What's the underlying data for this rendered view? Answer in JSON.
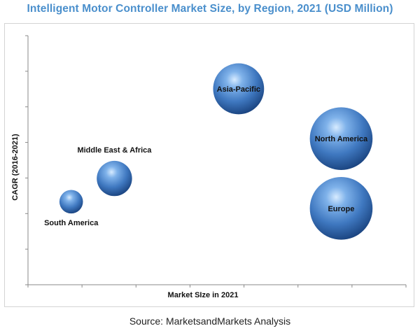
{
  "chart_data": {
    "type": "scatter",
    "title": "Intelligent Motor Controller Market Size, by Region, 2021 (USD Million)",
    "xlabel": "Market SIze in 2021",
    "ylabel": "CAGR (2016-2021)",
    "x_ticks": 7,
    "y_ticks": 7,
    "grid": false,
    "legend": "none",
    "bubble_color": "#3f78c0",
    "series": [
      {
        "label": "South America",
        "x": 0.8,
        "y": 2.5,
        "size": 0.6,
        "label_pos": "below"
      },
      {
        "label": "Middle East & Africa",
        "x": 1.6,
        "y": 3.2,
        "size": 0.9,
        "label_pos": "above"
      },
      {
        "label": "Asia-Pacific",
        "x": 3.9,
        "y": 5.9,
        "size": 1.3,
        "label_pos": "center"
      },
      {
        "label": "North America",
        "x": 5.8,
        "y": 4.4,
        "size": 1.6,
        "label_pos": "center"
      },
      {
        "label": "Europe",
        "x": 5.8,
        "y": 2.3,
        "size": 1.6,
        "label_pos": "center"
      }
    ],
    "xlim": [
      0,
      7
    ],
    "ylim": [
      0,
      7.5
    ]
  },
  "source": "Source: MarketsandMarkets Analysis"
}
